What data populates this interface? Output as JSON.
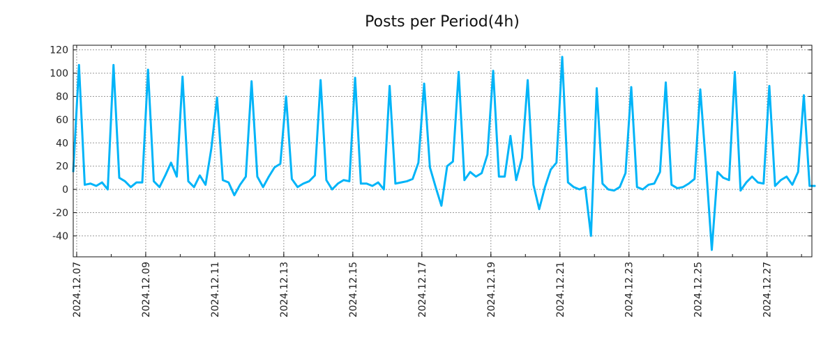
{
  "chart_data": {
    "type": "line",
    "title": "Posts per Period(4h)",
    "xlabel": "",
    "ylabel": "",
    "x_unit": "days since 2024.12.07 00:00",
    "x_start": -0.1,
    "x_step": 0.1666667,
    "xlim": [
      -0.1,
      21.3
    ],
    "ylim": [
      -58,
      124
    ],
    "grid": true,
    "line_color": "#00b4f8",
    "yticks": [
      -40,
      -20,
      0,
      20,
      40,
      60,
      80,
      100,
      120
    ],
    "xticks": [
      {
        "pos": 0,
        "label": "2024.12.07"
      },
      {
        "pos": 2,
        "label": "2024.12.09"
      },
      {
        "pos": 4,
        "label": "2024.12.11"
      },
      {
        "pos": 6,
        "label": "2024.12.13"
      },
      {
        "pos": 8,
        "label": "2024.12.15"
      },
      {
        "pos": 10,
        "label": "2024.12.17"
      },
      {
        "pos": 12,
        "label": "2024.12.19"
      },
      {
        "pos": 14,
        "label": "2024.12.21"
      },
      {
        "pos": 16,
        "label": "2024.12.23"
      },
      {
        "pos": 18,
        "label": "2024.12.25"
      },
      {
        "pos": 20,
        "label": "2024.12.27"
      }
    ],
    "series": [
      {
        "name": "Posts",
        "values": [
          15,
          107,
          4,
          5,
          3,
          6,
          0,
          107,
          10,
          7,
          2,
          6,
          6,
          103,
          7,
          2,
          12,
          23,
          11,
          97,
          7,
          2,
          12,
          4,
          35,
          79,
          8,
          6,
          -5,
          4,
          11,
          93,
          11,
          2,
          11,
          19,
          22,
          80,
          9,
          2,
          5,
          7,
          12,
          94,
          8,
          0,
          5,
          8,
          7,
          96,
          5,
          5,
          3,
          6,
          0,
          89,
          5,
          6,
          7,
          9,
          23,
          91,
          19,
          2,
          -14,
          20,
          24,
          101,
          8,
          15,
          11,
          14,
          30,
          102,
          11,
          11,
          46,
          8,
          27,
          94,
          4,
          -17,
          2,
          17,
          23,
          114,
          6,
          2,
          0,
          2,
          -40,
          87,
          5,
          0,
          -1,
          2,
          14,
          88,
          2,
          0,
          4,
          5,
          15,
          92,
          4,
          1,
          2,
          5,
          9,
          86,
          20,
          -52,
          15,
          10,
          8,
          101,
          -1,
          6,
          11,
          6,
          5,
          89,
          3,
          8,
          11,
          4,
          15,
          81,
          3,
          3
        ]
      }
    ]
  }
}
